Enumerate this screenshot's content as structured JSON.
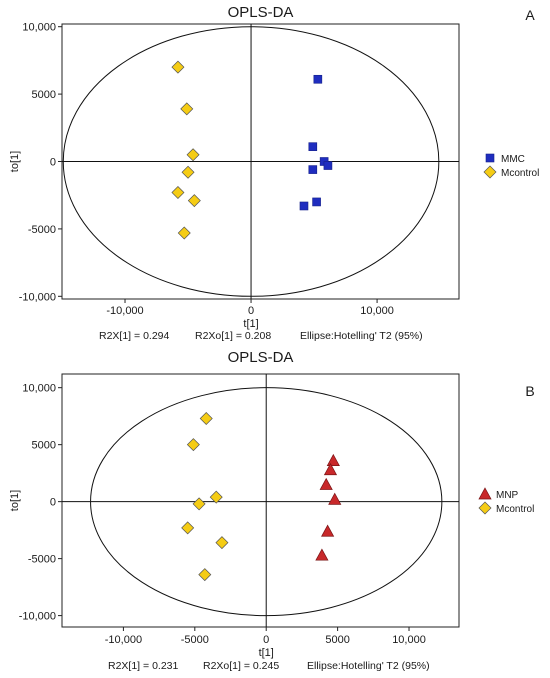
{
  "chart_data": [
    {
      "panel_letter": "A",
      "type": "scatter",
      "title": "OPLS-DA",
      "xlabel": "t[1]",
      "ylabel": "to[1]",
      "xlim": [
        -15000,
        16500
      ],
      "ylim": [
        -10200,
        10200
      ],
      "x_ticks": [
        -10000,
        0,
        10000
      ],
      "x_tick_labels": [
        "-10,000",
        "0",
        "10,000"
      ],
      "y_ticks": [
        10000,
        5000,
        0,
        -5000,
        -10000
      ],
      "y_tick_labels": [
        "10,000",
        "5000",
        "0",
        "-5000",
        "-10,000"
      ],
      "ellipse": {
        "rx": 14900,
        "ry": 10000
      },
      "grid": false,
      "legend_position": "right",
      "stats": [
        "R2X[1]  =  0.294",
        "R2Xo[1]  =  0.208",
        "Ellipse:Hotelling' T2 (95%)"
      ],
      "series": [
        {
          "name": "MMC",
          "marker": "square",
          "color": "#1f2dbf",
          "x": [
            5300,
            4900,
            5800,
            6100,
            4900,
            5200,
            4200
          ],
          "y": [
            6100,
            1100,
            0,
            -300,
            -600,
            -3000,
            -3300
          ]
        },
        {
          "name": "Mcontrol",
          "marker": "diamond",
          "color": "#f5cc14",
          "x": [
            -5800,
            -5100,
            -4600,
            -5000,
            -5800,
            -4500,
            -5300
          ],
          "y": [
            7000,
            3900,
            500,
            -800,
            -2300,
            -2900,
            -5300
          ]
        }
      ]
    },
    {
      "panel_letter": "B",
      "type": "scatter",
      "title": "OPLS-DA",
      "xlabel": "t[1]",
      "ylabel": "to[1]",
      "xlim": [
        -14300,
        13500
      ],
      "ylim": [
        -11000,
        11200
      ],
      "x_ticks": [
        -10000,
        -5000,
        0,
        5000,
        10000
      ],
      "x_tick_labels": [
        "-10,000",
        "-5000",
        "0",
        "5000",
        "10,000"
      ],
      "y_ticks": [
        10000,
        5000,
        0,
        -5000,
        -10000
      ],
      "y_tick_labels": [
        "10,000",
        "5000",
        "0",
        "-5000",
        "-10,000"
      ],
      "ellipse": {
        "rx": 12300,
        "ry": 10000
      },
      "grid": false,
      "legend_position": "right",
      "stats": [
        "R2X[1]  =  0.231",
        "R2Xo[1]  =  0.245",
        "Ellipse:Hotelling' T2 (95%)"
      ],
      "series": [
        {
          "name": "MNP",
          "marker": "triangle",
          "color": "#c8282a",
          "x": [
            4700,
            4500,
            4200,
            4800,
            4300,
            3900
          ],
          "y": [
            3600,
            2800,
            1500,
            200,
            -2600,
            -4700
          ]
        },
        {
          "name": "Mcontrol",
          "marker": "diamond",
          "color": "#f5cc14",
          "x": [
            -4200,
            -5100,
            -3500,
            -4700,
            -5500,
            -3100,
            -4300
          ],
          "y": [
            7300,
            5000,
            400,
            -200,
            -2300,
            -3600,
            -6400
          ]
        }
      ]
    }
  ]
}
